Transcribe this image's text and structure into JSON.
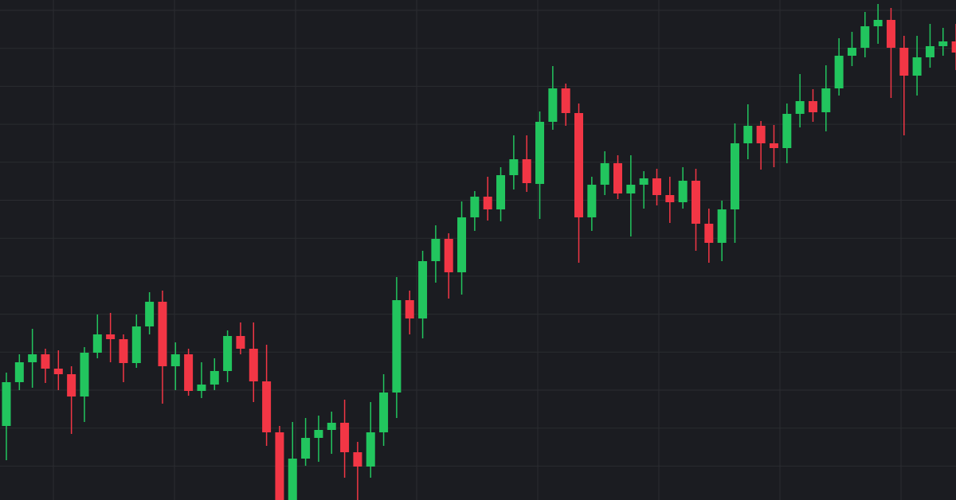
{
  "chart_data": {
    "type": "candlestick",
    "ylim": [
      0,
      628
    ],
    "grid": true,
    "up_color": "#22c55e",
    "down_color": "#f23645",
    "open": [
      93,
      148,
      173,
      183,
      165,
      158,
      130,
      185,
      208,
      202,
      172,
      218,
      249,
      168,
      183,
      137,
      145,
      162,
      206,
      190,
      149,
      85,
      0,
      52,
      78,
      88,
      97,
      60,
      42,
      85,
      135,
      251,
      228,
      300,
      328,
      286,
      355,
      381,
      365,
      408,
      428,
      397,
      475,
      517,
      486,
      355,
      396,
      423,
      385,
      396,
      404,
      383,
      374,
      401,
      347,
      323,
      365,
      448,
      470,
      448,
      442,
      485,
      501,
      487,
      517,
      558,
      568,
      595,
      603,
      568,
      533,
      556,
      570,
      576
    ],
    "high": [
      160,
      183,
      215,
      190,
      188,
      168,
      192,
      233,
      235,
      208,
      233,
      261,
      263,
      198,
      190,
      173,
      178,
      213,
      223,
      223,
      195,
      93,
      98,
      103,
      106,
      111,
      126,
      73,
      123,
      158,
      280,
      263,
      313,
      345,
      335,
      375,
      388,
      406,
      418,
      458,
      458,
      488,
      545,
      523,
      498,
      406,
      438,
      433,
      433,
      413,
      416,
      406,
      418,
      416,
      366,
      376,
      473,
      497,
      476,
      471,
      498,
      535,
      516,
      546,
      580,
      588,
      613,
      623,
      618,
      583,
      583,
      598,
      593,
      598
    ],
    "low": [
      50,
      138,
      141,
      147,
      138,
      83,
      98,
      178,
      173,
      148,
      166,
      208,
      121,
      138,
      131,
      128,
      138,
      148,
      183,
      123,
      68,
      0,
      0,
      43,
      48,
      58,
      28,
      0,
      28,
      68,
      103,
      208,
      203,
      273,
      253,
      258,
      338,
      351,
      350,
      390,
      387,
      353,
      465,
      470,
      298,
      338,
      383,
      378,
      331,
      366,
      370,
      348,
      366,
      313,
      298,
      300,
      323,
      428,
      415,
      418,
      423,
      468,
      475,
      463,
      508,
      545,
      556,
      573,
      505,
      458,
      508,
      543,
      558,
      540
    ],
    "close": [
      148,
      173,
      183,
      165,
      158,
      130,
      185,
      208,
      202,
      172,
      218,
      249,
      168,
      183,
      137,
      145,
      162,
      206,
      190,
      149,
      85,
      0,
      52,
      78,
      88,
      97,
      60,
      42,
      85,
      135,
      251,
      228,
      300,
      328,
      286,
      355,
      381,
      365,
      408,
      428,
      398,
      475,
      517,
      486,
      355,
      396,
      423,
      385,
      396,
      404,
      383,
      374,
      401,
      347,
      323,
      365,
      448,
      470,
      448,
      442,
      485,
      501,
      487,
      517,
      558,
      568,
      595,
      603,
      568,
      533,
      556,
      570,
      576,
      562
    ]
  }
}
